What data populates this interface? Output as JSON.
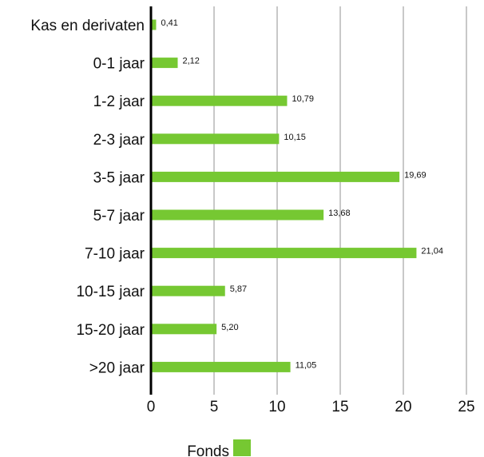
{
  "chart_data": {
    "type": "bar",
    "orientation": "horizontal",
    "categories": [
      "Kas en derivaten",
      "0-1 jaar",
      "1-2 jaar",
      "2-3 jaar",
      "3-5 jaar",
      "5-7 jaar",
      "7-10 jaar",
      "10-15 jaar",
      "15-20 jaar",
      ">20 jaar"
    ],
    "series": [
      {
        "name": "Fonds",
        "values": [
          0.41,
          2.12,
          10.79,
          10.15,
          19.69,
          13.68,
          21.04,
          5.87,
          5.2,
          11.05
        ],
        "value_labels": [
          "0,41",
          "2,12",
          "10,79",
          "10,15",
          "19,69",
          "13,68",
          "21,04",
          "5,87",
          "5,20",
          "11,05"
        ],
        "color": "#76c832"
      }
    ],
    "xlim": [
      0,
      25
    ],
    "xticks": [
      0,
      5,
      10,
      15,
      20,
      25
    ],
    "xgrid": true,
    "legend_position": "bottom-center",
    "title": "",
    "xlabel": "",
    "ylabel": ""
  },
  "colors": {
    "bar": "#76c832",
    "grid": "#c8c8c8",
    "axis": "#000000"
  }
}
